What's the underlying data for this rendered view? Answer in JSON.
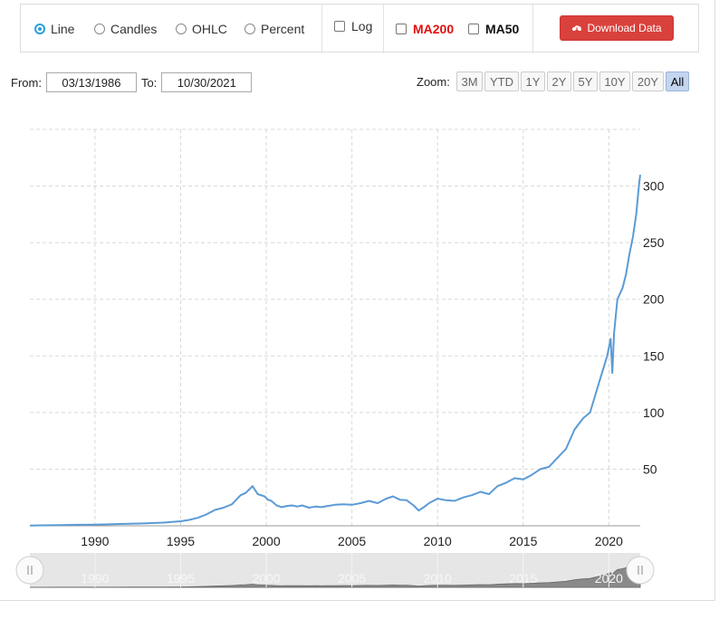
{
  "toolbar": {
    "chart_types": [
      {
        "label": "Line",
        "selected": true
      },
      {
        "label": "Candles",
        "selected": false
      },
      {
        "label": "OHLC",
        "selected": false
      },
      {
        "label": "Percent",
        "selected": false
      }
    ],
    "log_label": "Log",
    "ma200_label": "MA200",
    "ma50_label": "MA50",
    "download_label": "Download Data",
    "colors": {
      "accent": "#2a9fd6",
      "download": "#d9413c",
      "ma200": "#e01010"
    }
  },
  "range": {
    "from_label": "From:",
    "from_value": "03/13/1986",
    "to_label": "To:",
    "to_value": "10/30/2021"
  },
  "zoom": {
    "label": "Zoom:",
    "buttons": [
      "3M",
      "YTD",
      "1Y",
      "2Y",
      "5Y",
      "10Y",
      "20Y",
      "All"
    ],
    "active": "All"
  },
  "chart_data": {
    "type": "line",
    "series_color": "#5b9bd5",
    "x_ticks": [
      "1990",
      "1995",
      "2000",
      "2005",
      "2010",
      "2015",
      "2020"
    ],
    "y_ticks": [
      50,
      100,
      150,
      200,
      250,
      300
    ],
    "xlim": [
      1986.2,
      2021.83
    ],
    "ylim": [
      0,
      350
    ],
    "grid": true,
    "navigator_ticks": [
      "1990",
      "1995",
      "2000",
      "2005",
      "2010",
      "2015",
      "2020"
    ],
    "series": [
      {
        "x": [
          1986.2,
          1987.0,
          1988.0,
          1989.0,
          1990.0,
          1991.0,
          1992.0,
          1993.0,
          1994.0,
          1995.0,
          1995.5,
          1996.0,
          1996.5,
          1997.0,
          1997.5,
          1998.0,
          1998.5,
          1998.8,
          1999.0,
          1999.2,
          1999.5,
          1999.9,
          2000.1,
          2000.3,
          2000.6,
          2000.9,
          2001.2,
          2001.5,
          2001.8,
          2002.1,
          2002.5,
          2002.9,
          2003.2,
          2003.6,
          2004.0,
          2004.5,
          2005.0,
          2005.5,
          2006.0,
          2006.5,
          2007.0,
          2007.4,
          2007.8,
          2008.2,
          2008.6,
          2008.9,
          2009.2,
          2009.5,
          2010.0,
          2010.5,
          2011.0,
          2011.5,
          2012.0,
          2012.5,
          2013.0,
          2013.5,
          2014.0,
          2014.5,
          2015.0,
          2015.5,
          2016.0,
          2016.5,
          2017.0,
          2017.5,
          2018.0,
          2018.5,
          2018.9,
          2019.2,
          2019.5,
          2019.9,
          2020.1,
          2020.2,
          2020.3,
          2020.5,
          2020.8,
          2021.0,
          2021.2,
          2021.4,
          2021.6,
          2021.75,
          2021.83
        ],
        "y": [
          0.2,
          0.4,
          0.6,
          0.9,
          1.0,
          1.4,
          1.8,
          2.2,
          2.8,
          4.0,
          5.2,
          7.0,
          10.0,
          14.0,
          16.0,
          19.0,
          27.0,
          29.0,
          32.0,
          35.0,
          28.0,
          26.0,
          23.0,
          22.0,
          18.0,
          16.5,
          17.5,
          18.0,
          17.0,
          18.0,
          16.0,
          17.0,
          16.5,
          17.5,
          18.5,
          19.0,
          18.5,
          20.0,
          22.0,
          20.0,
          24.0,
          26.0,
          23.0,
          22.5,
          18.0,
          13.5,
          16.5,
          20.0,
          24.0,
          22.5,
          22.0,
          25.0,
          27.0,
          30.0,
          28.0,
          35.0,
          38.0,
          42.0,
          41.0,
          45.0,
          50.0,
          52.0,
          60.0,
          68.0,
          85.0,
          95.0,
          100.0,
          115.0,
          130.0,
          150.0,
          165.0,
          135.0,
          170.0,
          200.0,
          210.0,
          222.0,
          240.0,
          255.0,
          275.0,
          300.0,
          310.0
        ]
      }
    ]
  }
}
